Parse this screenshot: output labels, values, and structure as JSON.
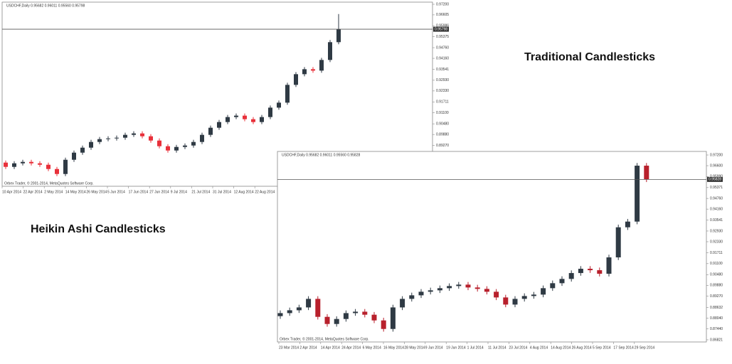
{
  "chart_data": [
    {
      "type": "candlestick",
      "label": "Heikin Ashi Candlesticks",
      "header": "USDCHF,Daily 0.95682 0.96011 0.95560 0.95798",
      "footer": "Orbex Trader, © 2001-2014, MetaQuotes Software Corp.",
      "x_labels": [
        "10 Apr 2014",
        "22 Apr 2014",
        "2 May 2014",
        "14 May 2014",
        "26 May 2014",
        "5 Jun 2014",
        "17 Jun 2014",
        "27 Jun 2014",
        "9 Jul 2014",
        "21 Jul 2014",
        "31 Jul 2014",
        "12 Aug 2014",
        "22 Aug 2014"
      ],
      "open": [
        0.883,
        0.8806,
        0.8826,
        0.8834,
        0.8826,
        0.8818,
        0.8794,
        0.8766,
        0.8846,
        0.8886,
        0.8914,
        0.8946,
        0.8962,
        0.8966,
        0.897,
        0.8986,
        0.8994,
        0.8978,
        0.8954,
        0.8922,
        0.8898,
        0.8918,
        0.8926,
        0.8946,
        0.8986,
        0.9026,
        0.9058,
        0.9086,
        0.9094,
        0.9074,
        0.9058,
        0.9086,
        0.9139,
        0.9167,
        0.9267,
        0.9327,
        0.9355,
        0.9347,
        0.9407,
        0.9507
      ],
      "high": [
        0.8842,
        0.8838,
        0.8846,
        0.8846,
        0.8838,
        0.883,
        0.8806,
        0.8858,
        0.8898,
        0.8926,
        0.8958,
        0.8974,
        0.8978,
        0.8982,
        0.8998,
        0.9006,
        0.9006,
        0.899,
        0.8966,
        0.8934,
        0.893,
        0.8938,
        0.8958,
        0.8998,
        0.9038,
        0.907,
        0.9098,
        0.9106,
        0.9106,
        0.9086,
        0.9098,
        0.9151,
        0.9179,
        0.9279,
        0.9339,
        0.9367,
        0.9367,
        0.9419,
        0.9519,
        0.9665
      ],
      "low": [
        0.8794,
        0.8794,
        0.8814,
        0.8814,
        0.8806,
        0.8782,
        0.8754,
        0.8754,
        0.8834,
        0.8874,
        0.8902,
        0.8934,
        0.895,
        0.8954,
        0.8958,
        0.8974,
        0.8966,
        0.8942,
        0.891,
        0.8886,
        0.8886,
        0.8906,
        0.8914,
        0.8934,
        0.8974,
        0.9014,
        0.9046,
        0.9074,
        0.9062,
        0.9046,
        0.9046,
        0.9074,
        0.9127,
        0.9155,
        0.9255,
        0.9315,
        0.9335,
        0.9335,
        0.9395,
        0.9495
      ],
      "close": [
        0.8806,
        0.8826,
        0.8834,
        0.8826,
        0.8818,
        0.8794,
        0.8766,
        0.8846,
        0.8886,
        0.8914,
        0.8946,
        0.8962,
        0.8966,
        0.897,
        0.8986,
        0.8994,
        0.8978,
        0.8954,
        0.8922,
        0.8898,
        0.8918,
        0.8926,
        0.8946,
        0.8986,
        0.9026,
        0.9058,
        0.9086,
        0.9094,
        0.9074,
        0.9058,
        0.9086,
        0.9139,
        0.9167,
        0.9267,
        0.9327,
        0.9355,
        0.9347,
        0.9407,
        0.9507,
        0.958
      ],
      "ylim": [
        0.8697,
        0.9732
      ],
      "yticks": [
        {
          "value": 0.972,
          "label": "0.97200"
        },
        {
          "value": 0.96605,
          "label": "0.96605"
        },
        {
          "value": 0.95986,
          "label": "0.95986"
        },
        {
          "value": 0.95375,
          "label": "0.95375"
        },
        {
          "value": 0.9476,
          "label": "0.94760"
        },
        {
          "value": 0.9416,
          "label": "0.94160"
        },
        {
          "value": 0.93541,
          "label": "0.93541"
        },
        {
          "value": 0.9293,
          "label": "0.92930"
        },
        {
          "value": 0.9233,
          "label": "0.92330"
        },
        {
          "value": 0.91711,
          "label": "0.91711"
        },
        {
          "value": 0.911,
          "label": "0.91100"
        },
        {
          "value": 0.9048,
          "label": "0.90480"
        },
        {
          "value": 0.8988,
          "label": "0.89880"
        },
        {
          "value": 0.8927,
          "label": "0.89270"
        }
      ],
      "current_price": 0.95798,
      "up_color": "#2f3a44",
      "down_color": "#e8303a"
    },
    {
      "type": "candlestick",
      "label": "Traditional Candlesticks",
      "header": "USDCHF,Daily 0.95682 0.96011 0.95560 0.95828",
      "footer": "Orbex Trader, © 2001-2014, MetaQuotes Software Corp.",
      "x_labels": [
        "23 Mar 2014",
        "2 Apr 2014",
        "14 Apr 2014",
        "24 Apr 2014",
        "6 May 2014",
        "16 May 2014",
        "28 May 2014",
        "9 Jun 2014",
        "19 Jun 2014",
        "1 Jul 2014",
        "11 Jul 2014",
        "23 Jul 2014",
        "4 Aug 2014",
        "14 Aug 2014",
        "26 Aug 2014",
        "5 Sep 2014",
        "17 Sep 2014",
        "29 Sep 2014"
      ],
      "open": [
        0.8815,
        0.8832,
        0.8848,
        0.8864,
        0.8912,
        0.8811,
        0.8771,
        0.8799,
        0.8832,
        0.884,
        0.8823,
        0.8791,
        0.8743,
        0.8864,
        0.8912,
        0.8932,
        0.8952,
        0.896,
        0.8972,
        0.8984,
        0.8992,
        0.8976,
        0.8968,
        0.8952,
        0.892,
        0.888,
        0.8912,
        0.8928,
        0.8936,
        0.8972,
        0.9,
        0.9024,
        0.9057,
        0.9081,
        0.9073,
        0.9053,
        0.9145,
        0.9314,
        0.9346,
        0.966
      ],
      "high": [
        0.8847,
        0.8863,
        0.8879,
        0.8927,
        0.8927,
        0.8826,
        0.8814,
        0.8847,
        0.8855,
        0.8855,
        0.8838,
        0.8806,
        0.8879,
        0.8927,
        0.8947,
        0.8967,
        0.8975,
        0.8987,
        0.8999,
        0.9007,
        0.9007,
        0.8991,
        0.8983,
        0.8967,
        0.8935,
        0.8927,
        0.8943,
        0.8951,
        0.8987,
        0.9015,
        0.9039,
        0.9072,
        0.9096,
        0.9096,
        0.9088,
        0.916,
        0.9329,
        0.9361,
        0.9675,
        0.9675
      ],
      "low": [
        0.88,
        0.8817,
        0.8833,
        0.8849,
        0.8796,
        0.8756,
        0.8756,
        0.8784,
        0.8817,
        0.8808,
        0.8776,
        0.8728,
        0.8728,
        0.8849,
        0.8897,
        0.8917,
        0.8937,
        0.8945,
        0.8957,
        0.8969,
        0.8961,
        0.8953,
        0.8937,
        0.8905,
        0.8865,
        0.8865,
        0.8897,
        0.8913,
        0.8921,
        0.8957,
        0.8985,
        0.9009,
        0.9042,
        0.9058,
        0.9038,
        0.9038,
        0.913,
        0.9299,
        0.9331,
        0.9568
      ],
      "close": [
        0.8832,
        0.8848,
        0.8864,
        0.8912,
        0.8811,
        0.8771,
        0.8799,
        0.8832,
        0.884,
        0.8823,
        0.8791,
        0.8743,
        0.8864,
        0.8912,
        0.8932,
        0.8952,
        0.896,
        0.8972,
        0.8984,
        0.8992,
        0.8976,
        0.8968,
        0.8952,
        0.892,
        0.888,
        0.8912,
        0.8928,
        0.8936,
        0.8972,
        0.9,
        0.9024,
        0.9057,
        0.9081,
        0.9073,
        0.9053,
        0.9145,
        0.9314,
        0.9346,
        0.966,
        0.9583
      ],
      "ylim": [
        0.867,
        0.974
      ],
      "yticks": [
        {
          "value": 0.972,
          "label": "0.97200"
        },
        {
          "value": 0.966,
          "label": "0.96600"
        },
        {
          "value": 0.9599,
          "label": "0.95990"
        },
        {
          "value": 0.95371,
          "label": "0.95371"
        },
        {
          "value": 0.9476,
          "label": "0.94760"
        },
        {
          "value": 0.9416,
          "label": "0.94160"
        },
        {
          "value": 0.93541,
          "label": "0.93541"
        },
        {
          "value": 0.9293,
          "label": "0.92930"
        },
        {
          "value": 0.9233,
          "label": "0.92330"
        },
        {
          "value": 0.91711,
          "label": "0.91711"
        },
        {
          "value": 0.911,
          "label": "0.91100"
        },
        {
          "value": 0.9048,
          "label": "0.90480"
        },
        {
          "value": 0.8988,
          "label": "0.89880"
        },
        {
          "value": 0.8927,
          "label": "0.89270"
        },
        {
          "value": 0.88632,
          "label": "0.88632"
        },
        {
          "value": 0.8804,
          "label": "0.88040"
        },
        {
          "value": 0.8744,
          "label": "0.87440"
        },
        {
          "value": 0.86821,
          "label": "0.86821"
        }
      ],
      "current_price": 0.95828,
      "up_color": "#2f3a44",
      "down_color": "#b8202c"
    }
  ]
}
